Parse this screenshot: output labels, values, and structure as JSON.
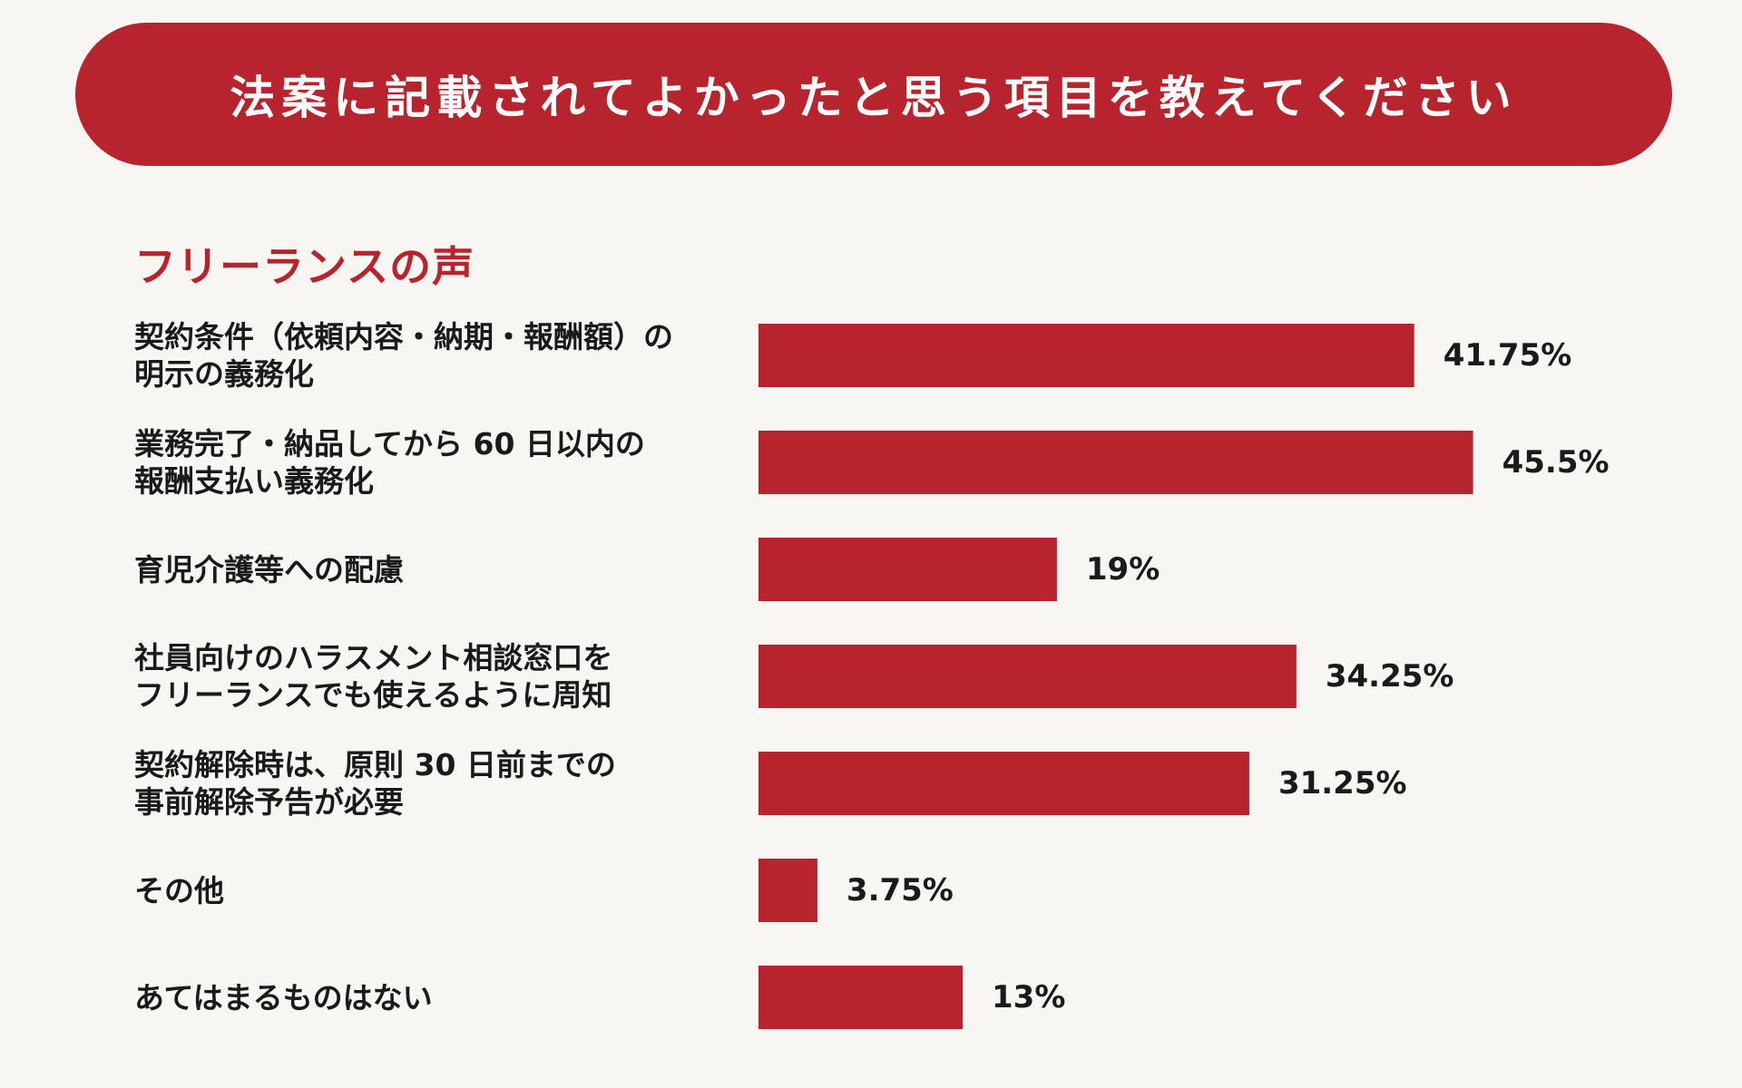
{
  "title": "法案に記載されてよかったと思う項目を教えてください",
  "subtitle": "フリーランスの声",
  "colors": {
    "accent": "#b8242e",
    "background": "#f8f6f3",
    "text": "#1a1a1a"
  },
  "chart_data": {
    "type": "bar",
    "orientation": "horizontal",
    "title": "法案に記載されてよかったと思う項目を教えてください",
    "subtitle": "フリーランスの声",
    "categories": [
      [
        "契約条件（依頼内容・納期・報酬額）の",
        "明示の義務化"
      ],
      [
        "業務完了・納品してから 60 日以内の",
        "報酬支払い義務化"
      ],
      [
        "育児介護等への配慮"
      ],
      [
        "社員向けのハラスメント相談窓口を",
        "フリーランスでも使えるように周知"
      ],
      [
        "契約解除時は、原則 30 日前までの",
        "事前解除予告が必要"
      ],
      [
        "その他"
      ],
      [
        "あてはまるものはない"
      ]
    ],
    "values": [
      41.75,
      45.5,
      19,
      34.25,
      31.25,
      3.75,
      13
    ],
    "value_labels": [
      "41.75%",
      "45.5%",
      "19%",
      "34.25%",
      "31.25%",
      "3.75%",
      "13%"
    ],
    "unit": "%",
    "xlim": [
      0,
      50
    ],
    "grid": false,
    "legend": "none"
  }
}
